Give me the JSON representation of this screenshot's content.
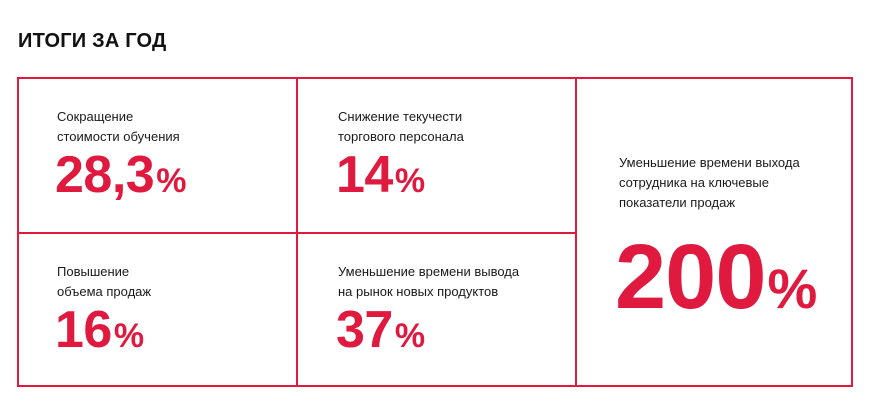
{
  "title": "ИТОГИ ЗА ГОД",
  "accent_color": "#e0193f",
  "stats": [
    {
      "label": "Сокращение\nстоимости обучения",
      "number": "28,3",
      "unit": "%"
    },
    {
      "label": "Снижение текучести\nторгового персонала",
      "number": "14",
      "unit": "%"
    },
    {
      "label": "Уменьшение времени выхода\nсотрудника на ключевые\nпоказатели продаж",
      "number": "200",
      "unit": "%"
    },
    {
      "label": "Повышение\nобъема продаж",
      "number": "16",
      "unit": "%"
    },
    {
      "label": "Уменьшение времени вывода\nна рынок новых продуктов",
      "number": "37",
      "unit": "%"
    }
  ]
}
